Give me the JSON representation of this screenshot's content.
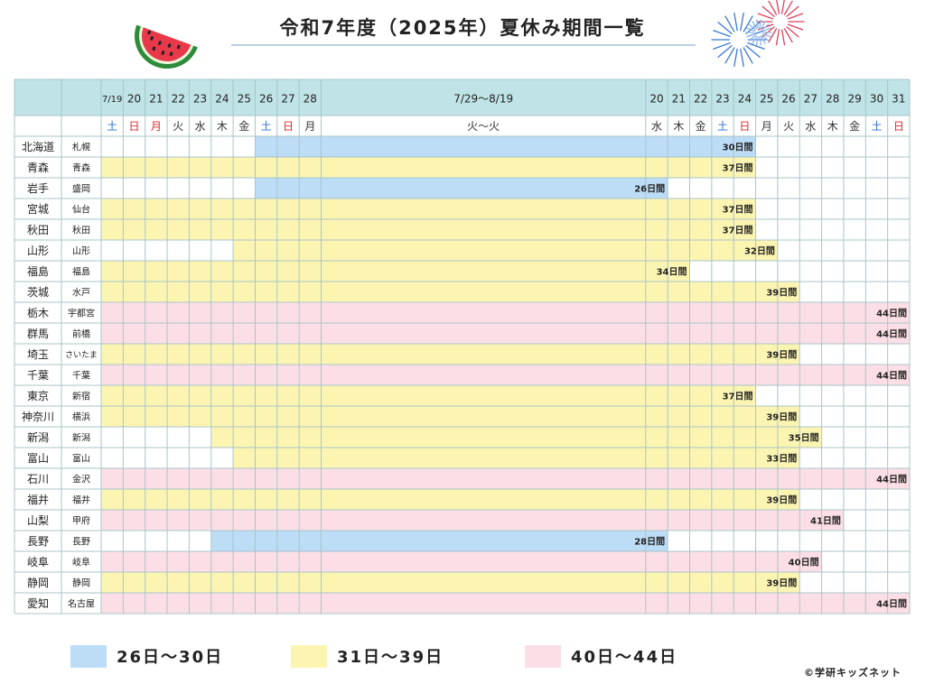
{
  "title": "令和7年度（2025年）夏休み期間一覧",
  "table": {
    "dates": [
      "7/19",
      "20",
      "21",
      "22",
      "23",
      "24",
      "25",
      "26",
      "27",
      "28",
      "7/29～8/19",
      "20",
      "21",
      "22",
      "23",
      "24",
      "25",
      "26",
      "27",
      "28",
      "29",
      "30",
      "31"
    ],
    "weekdays": [
      "土",
      "日",
      "月",
      "火",
      "水",
      "木",
      "金",
      "土",
      "日",
      "月",
      "火～火",
      "水",
      "木",
      "金",
      "土",
      "日",
      "月",
      "火",
      "水",
      "木",
      "金",
      "土",
      "日"
    ],
    "weekday_colors": [
      "#2f6fd0",
      "#e02828",
      "#e02828",
      "#333",
      "#333",
      "#333",
      "#333",
      "#2f6fd0",
      "#e02828",
      "#333",
      "#333",
      "#333",
      "#333",
      "#333",
      "#2f6fd0",
      "#e02828",
      "#333",
      "#333",
      "#333",
      "#333",
      "#333",
      "#2f6fd0",
      "#e02828"
    ],
    "rows": [
      {
        "prefecture": "北海道",
        "city": "札幌",
        "start": 7,
        "end": 15,
        "label": "30日間",
        "group": 0
      },
      {
        "prefecture": "青森",
        "city": "青森",
        "start": 0,
        "end": 15,
        "label": "37日間",
        "group": 1
      },
      {
        "prefecture": "岩手",
        "city": "盛岡",
        "start": 7,
        "end": 11,
        "label": "26日間",
        "group": 0
      },
      {
        "prefecture": "宮城",
        "city": "仙台",
        "start": 0,
        "end": 15,
        "label": "37日間",
        "group": 1
      },
      {
        "prefecture": "秋田",
        "city": "秋田",
        "start": 0,
        "end": 15,
        "label": "37日間",
        "group": 1
      },
      {
        "prefecture": "山形",
        "city": "山形",
        "start": 6,
        "end": 16,
        "label": "32日間",
        "group": 1
      },
      {
        "prefecture": "福島",
        "city": "福島",
        "start": 0,
        "end": 12,
        "label": "34日間",
        "group": 1
      },
      {
        "prefecture": "茨城",
        "city": "水戸",
        "start": 0,
        "end": 17,
        "label": "39日間",
        "group": 1
      },
      {
        "prefecture": "栃木",
        "city": "宇都宮",
        "start": 0,
        "end": 22,
        "label": "44日間",
        "group": 2
      },
      {
        "prefecture": "群馬",
        "city": "前橋",
        "start": 0,
        "end": 22,
        "label": "44日間",
        "group": 2
      },
      {
        "prefecture": "埼玉",
        "city": "さいたま",
        "start": 0,
        "end": 17,
        "label": "39日間",
        "group": 1
      },
      {
        "prefecture": "千葉",
        "city": "千葉",
        "start": 0,
        "end": 22,
        "label": "44日間",
        "group": 2
      },
      {
        "prefecture": "東京",
        "city": "新宿",
        "start": 0,
        "end": 15,
        "label": "37日間",
        "group": 1
      },
      {
        "prefecture": "神奈川",
        "city": "横浜",
        "start": 0,
        "end": 17,
        "label": "39日間",
        "group": 1
      },
      {
        "prefecture": "新潟",
        "city": "新潟",
        "start": 5,
        "end": 18,
        "label": "35日間",
        "group": 1
      },
      {
        "prefecture": "富山",
        "city": "富山",
        "start": 6,
        "end": 17,
        "label": "33日間",
        "group": 1
      },
      {
        "prefecture": "石川",
        "city": "金沢",
        "start": 0,
        "end": 22,
        "label": "44日間",
        "group": 2
      },
      {
        "prefecture": "福井",
        "city": "福井",
        "start": 0,
        "end": 17,
        "label": "39日間",
        "group": 1
      },
      {
        "prefecture": "山梨",
        "city": "甲府",
        "start": 0,
        "end": 19,
        "label": "41日間",
        "group": 2
      },
      {
        "prefecture": "長野",
        "city": "長野",
        "start": 5,
        "end": 11,
        "label": "28日間",
        "group": 0
      },
      {
        "prefecture": "岐阜",
        "city": "岐阜",
        "start": 0,
        "end": 18,
        "label": "40日間",
        "group": 2
      },
      {
        "prefecture": "静岡",
        "city": "静岡",
        "start": 0,
        "end": 17,
        "label": "39日間",
        "group": 1
      },
      {
        "prefecture": "愛知",
        "city": "名古屋",
        "start": 0,
        "end": 22,
        "label": "44日間",
        "group": 2
      }
    ]
  },
  "legend": [
    {
      "label": "26日～30日",
      "color": "#bddcf6"
    },
    {
      "label": "31日～39日",
      "color": "#fcf5b2"
    },
    {
      "label": "40日～44日",
      "color": "#fcdfe6"
    }
  ],
  "copyright": "©学研キッズネット"
}
